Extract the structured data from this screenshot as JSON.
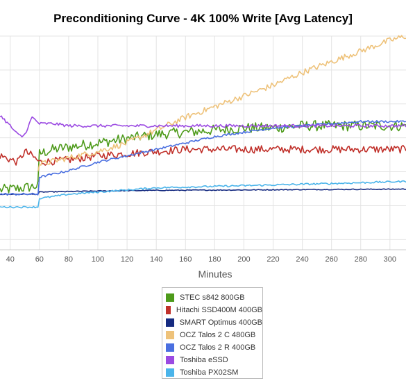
{
  "chart_data": {
    "type": "line",
    "title": "Preconditioning Curve - 4K 100% Write [Avg Latency]",
    "xlabel": "Minutes",
    "ylabel": "",
    "xlim": [
      33,
      311
    ],
    "ylim": [
      0,
      100
    ],
    "x_ticks": [
      40,
      60,
      80,
      100,
      120,
      140,
      160,
      180,
      200,
      220,
      240,
      260,
      280,
      300
    ],
    "grid": true,
    "legend_position": "bottom-center",
    "series": [
      {
        "name": "STEC s842 800GB",
        "color": "#4d9a1a",
        "x": [
          33,
          50,
          59,
          60,
          70,
          80,
          90,
          100,
          120,
          140,
          160,
          180,
          200,
          220,
          240,
          260,
          280,
          300,
          311
        ],
        "y": [
          28,
          29,
          30,
          45,
          47,
          48,
          49,
          50,
          52,
          54,
          55,
          56,
          57,
          57,
          58,
          58,
          58,
          58,
          58
        ],
        "noise": 2.5
      },
      {
        "name": "Hitachi SSD400M 400GB",
        "color": "#c0302a",
        "x": [
          33,
          45,
          50,
          55,
          60,
          80,
          100,
          120,
          140,
          160,
          180,
          200,
          220,
          240,
          260,
          280,
          300,
          311
        ],
        "y": [
          44,
          41,
          46,
          44,
          41,
          42,
          44,
          45,
          46,
          47,
          47,
          47,
          47,
          47,
          47,
          47,
          47,
          47
        ],
        "noise": 1.8
      },
      {
        "name": "SMART Optimus 400GB",
        "color": "#152a80",
        "x": [
          33,
          59,
          60,
          100,
          140,
          200,
          250,
          311
        ],
        "y": [
          26,
          26,
          27,
          27.5,
          27.8,
          28,
          28.2,
          28.4
        ],
        "noise": 0.2
      },
      {
        "name": "OCZ Talos 2 C 480GB",
        "color": "#eec27a",
        "x": [
          59,
          60,
          80,
          100,
          120,
          140,
          160,
          180,
          200,
          220,
          240,
          260,
          280,
          300,
          311
        ],
        "y": [
          38,
          40,
          43,
          46,
          50,
          56,
          62,
          67,
          72,
          77,
          83,
          88,
          93,
          98,
          100
        ],
        "noise": 1.4
      },
      {
        "name": "OCZ Talos 2 R 400GB",
        "color": "#4a6fe0",
        "x": [
          33,
          59,
          60,
          80,
          100,
          120,
          140,
          160,
          180,
          200,
          220,
          240,
          260,
          280,
          300,
          311
        ],
        "y": [
          26,
          26,
          34,
          37,
          41,
          44,
          47,
          50,
          53,
          55,
          57,
          58,
          59,
          60,
          60,
          60
        ],
        "noise": 0.5
      },
      {
        "name": "Toshiba eSSD",
        "color": "#9b4ae2",
        "x": [
          33,
          40,
          45,
          48,
          50,
          55,
          60,
          70,
          80,
          100,
          140,
          200,
          260,
          311
        ],
        "y": [
          63,
          58,
          54,
          53,
          54,
          62,
          59,
          59,
          58,
          58,
          58,
          58,
          58,
          58
        ],
        "noise": 0.7
      },
      {
        "name": "Toshiba PX02SM",
        "color": "#4ab4ea",
        "x": [
          33,
          59,
          60,
          80,
          100,
          120,
          140,
          200,
          260,
          311
        ],
        "y": [
          20,
          20,
          24,
          26,
          27,
          28,
          29,
          30,
          31,
          32
        ],
        "noise": 0.4
      }
    ]
  }
}
